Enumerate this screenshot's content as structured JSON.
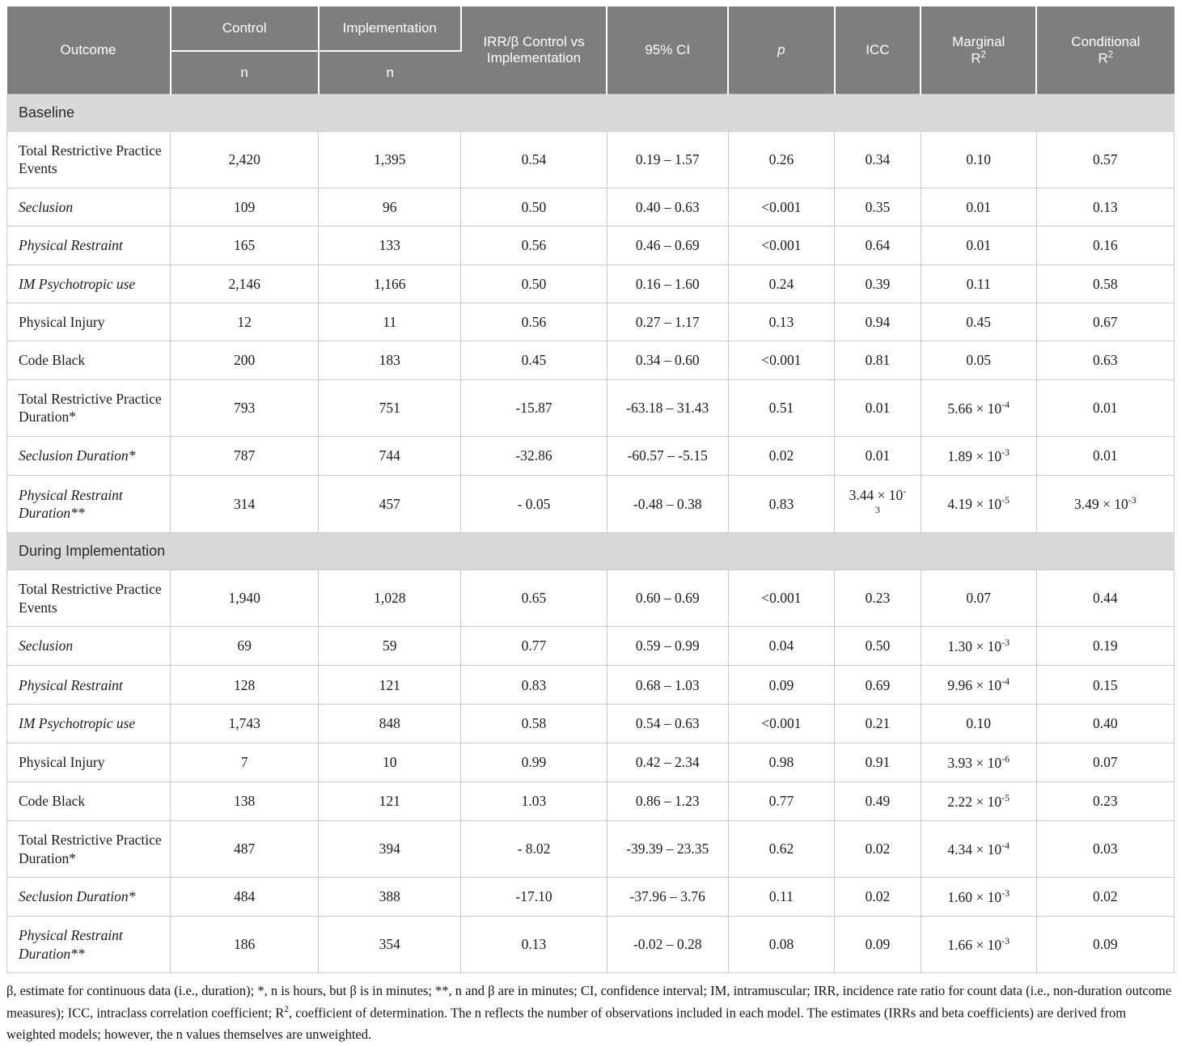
{
  "colors": {
    "header_bg": "#7e7e7e",
    "header_text": "#ffffff",
    "section_bg": "#d9d9d9",
    "border": "#c9c9c9",
    "body_text": "#1c1c1c"
  },
  "table": {
    "header": {
      "outcome": "Outcome",
      "control": "Control",
      "control_sub": "n",
      "implementation": "Implementation",
      "implementation_sub": "n",
      "irr": "IRR/β Control vs Implementation",
      "ci": "95% CI",
      "p": "p",
      "icc": "ICC",
      "marginal": "Marginal\nR^{2}",
      "conditional": "Conditional\nR^{2}"
    },
    "sections": [
      {
        "title": "Baseline",
        "rows": [
          {
            "outcome": "Total Restrictive Practice Events",
            "italic": false,
            "control_n": "2,420",
            "implementation_n": "1,395",
            "irr": "0.54",
            "ci": "0.19 – 1.57",
            "p": "0.26",
            "icc": "0.34",
            "marginal_r2": "0.10",
            "conditional_r2": "0.57"
          },
          {
            "outcome": "Seclusion",
            "italic": true,
            "control_n": "109",
            "implementation_n": "96",
            "irr": "0.50",
            "ci": "0.40 – 0.63",
            "p": "<0.001",
            "icc": "0.35",
            "marginal_r2": "0.01",
            "conditional_r2": "0.13"
          },
          {
            "outcome": "Physical Restraint",
            "italic": true,
            "control_n": "165",
            "implementation_n": "133",
            "irr": "0.56",
            "ci": "0.46 – 0.69",
            "p": "<0.001",
            "icc": "0.64",
            "marginal_r2": "0.01",
            "conditional_r2": "0.16"
          },
          {
            "outcome": "IM Psychotropic use",
            "italic": true,
            "control_n": "2,146",
            "implementation_n": "1,166",
            "irr": "0.50",
            "ci": "0.16 – 1.60",
            "p": "0.24",
            "icc": "0.39",
            "marginal_r2": "0.11",
            "conditional_r2": "0.58"
          },
          {
            "outcome": "Physical Injury",
            "italic": false,
            "control_n": "12",
            "implementation_n": "11",
            "irr": "0.56",
            "ci": "0.27 – 1.17",
            "p": "0.13",
            "icc": "0.94",
            "marginal_r2": "0.45",
            "conditional_r2": "0.67"
          },
          {
            "outcome": "Code Black",
            "italic": false,
            "control_n": "200",
            "implementation_n": "183",
            "irr": "0.45",
            "ci": "0.34 – 0.60",
            "p": "<0.001",
            "icc": "0.81",
            "marginal_r2": "0.05",
            "conditional_r2": "0.63"
          },
          {
            "outcome": "Total Restrictive Practice Duration*",
            "italic": false,
            "control_n": "793",
            "implementation_n": "751",
            "irr": "-15.87",
            "ci": "-63.18 – 31.43",
            "p": "0.51",
            "icc": "0.01",
            "marginal_r2": "5.66 × 10^{-4}",
            "conditional_r2": "0.01"
          },
          {
            "outcome": "Seclusion Duration*",
            "italic": true,
            "control_n": "787",
            "implementation_n": "744",
            "irr": "-32.86",
            "ci": "-60.57 – -5.15",
            "p": "0.02",
            "icc": "0.01",
            "marginal_r2": "1.89 × 10^{-3}",
            "conditional_r2": "0.01"
          },
          {
            "outcome": "Physical Restraint Duration**",
            "italic": true,
            "control_n": "314",
            "implementation_n": "457",
            "irr": "- 0.05",
            "ci": "-0.48 – 0.38",
            "p": "0.83",
            "icc": "3.44 × 10^{-}\n^{3}",
            "marginal_r2": "4.19 × 10^{-5}",
            "conditional_r2": "3.49 × 10^{-3}"
          }
        ]
      },
      {
        "title": "During Implementation",
        "rows": [
          {
            "outcome": "Total Restrictive Practice Events",
            "italic": false,
            "control_n": "1,940",
            "implementation_n": "1,028",
            "irr": "0.65",
            "ci": "0.60 – 0.69",
            "p": "<0.001",
            "icc": "0.23",
            "marginal_r2": "0.07",
            "conditional_r2": "0.44"
          },
          {
            "outcome": "Seclusion",
            "italic": true,
            "control_n": "69",
            "implementation_n": "59",
            "irr": "0.77",
            "ci": "0.59 – 0.99",
            "p": "0.04",
            "icc": "0.50",
            "marginal_r2": "1.30 × 10^{-3}",
            "conditional_r2": "0.19"
          },
          {
            "outcome": "Physical Restraint",
            "italic": true,
            "control_n": "128",
            "implementation_n": "121",
            "irr": "0.83",
            "ci": "0.68 – 1.03",
            "p": "0.09",
            "icc": "0.69",
            "marginal_r2": "9.96 × 10^{-4}",
            "conditional_r2": "0.15"
          },
          {
            "outcome": "IM Psychotropic use",
            "italic": true,
            "control_n": "1,743",
            "implementation_n": "848",
            "irr": "0.58",
            "ci": "0.54 – 0.63",
            "p": "<0.001",
            "icc": "0.21",
            "marginal_r2": "0.10",
            "conditional_r2": "0.40"
          },
          {
            "outcome": "Physical Injury",
            "italic": false,
            "control_n": "7",
            "implementation_n": "10",
            "irr": "0.99",
            "ci": "0.42 – 2.34",
            "p": "0.98",
            "icc": "0.91",
            "marginal_r2": "3.93 × 10^{-6}",
            "conditional_r2": "0.07"
          },
          {
            "outcome": "Code Black",
            "italic": false,
            "control_n": "138",
            "implementation_n": "121",
            "irr": "1.03",
            "ci": "0.86 – 1.23",
            "p": "0.77",
            "icc": "0.49",
            "marginal_r2": "2.22 × 10^{-5}",
            "conditional_r2": "0.23"
          },
          {
            "outcome": "Total Restrictive Practice Duration*",
            "italic": false,
            "control_n": "487",
            "implementation_n": "394",
            "irr": "- 8.02",
            "ci": "-39.39 – 23.35",
            "p": "0.62",
            "icc": "0.02",
            "marginal_r2": "4.34 × 10^{-4}",
            "conditional_r2": "0.03"
          },
          {
            "outcome": "Seclusion Duration*",
            "italic": true,
            "control_n": "484",
            "implementation_n": "388",
            "irr": "-17.10",
            "ci": "-37.96 – 3.76",
            "p": "0.11",
            "icc": "0.02",
            "marginal_r2": "1.60 × 10^{-3}",
            "conditional_r2": "0.02"
          },
          {
            "outcome": "Physical Restraint Duration**",
            "italic": true,
            "control_n": "186",
            "implementation_n": "354",
            "irr": "0.13",
            "ci": "-0.02 – 0.28",
            "p": "0.08",
            "icc": "0.09",
            "marginal_r2": "1.66 × 10^{-3}",
            "conditional_r2": "0.09"
          }
        ]
      }
    ]
  },
  "footnote": "β, estimate for continuous data (i.e., duration); *, n is hours, but β is in minutes; **, n and β are in minutes; CI, confidence interval; IM, intramuscular; IRR, incidence rate ratio for count data (i.e., non-duration outcome measures); ICC, intraclass correlation coefficient; R^{2}, coefficient of determination. The n reflects the number of observations included in each model. The estimates (IRRs and beta coefficients) are derived from weighted models; however, the n values themselves are unweighted."
}
